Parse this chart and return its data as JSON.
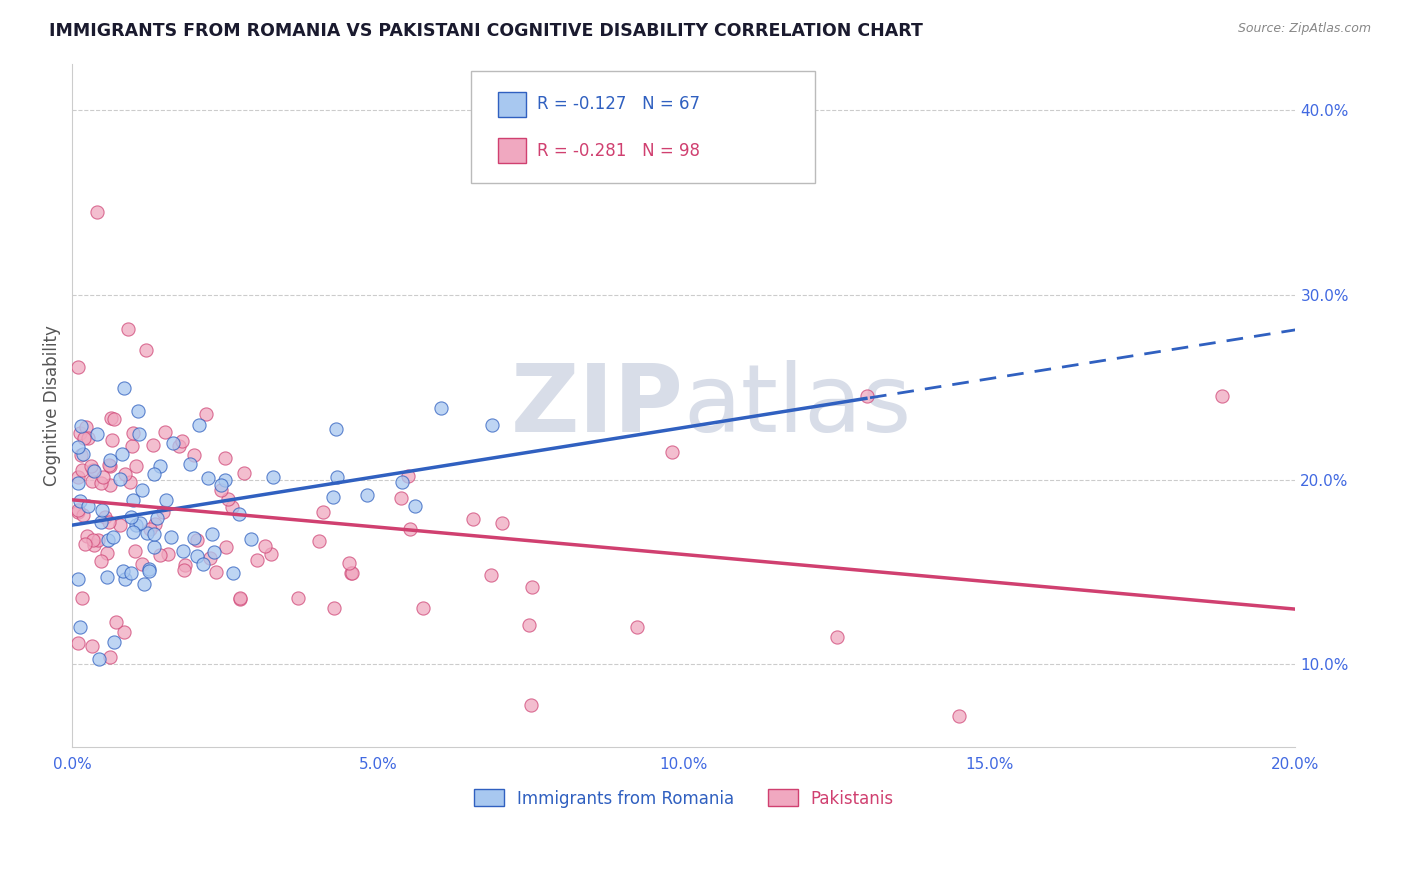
{
  "title": "IMMIGRANTS FROM ROMANIA VS PAKISTANI COGNITIVE DISABILITY CORRELATION CHART",
  "source": "Source: ZipAtlas.com",
  "ylabel": "Cognitive Disability",
  "legend_label_1": "Immigrants from Romania",
  "legend_label_2": "Pakistanis",
  "R1": -0.127,
  "N1": 67,
  "R2": -0.281,
  "N2": 98,
  "color1": "#a8c8f0",
  "color2": "#f0a8c0",
  "line_color1": "#3060c0",
  "line_color2": "#e0407080",
  "line_color2_solid": "#d04070",
  "watermark_color": "#d8dde8",
  "xlim": [
    0.0,
    0.2
  ],
  "ylim": [
    0.055,
    0.425
  ],
  "xticks": [
    0.0,
    0.05,
    0.1,
    0.15,
    0.2
  ],
  "yticks": [
    0.1,
    0.2,
    0.3,
    0.4
  ],
  "background_color": "#ffffff",
  "grid_color": "#cccccc",
  "title_color": "#1a1a2e",
  "axis_color": "#4169E1",
  "ylabel_color": "#555555"
}
